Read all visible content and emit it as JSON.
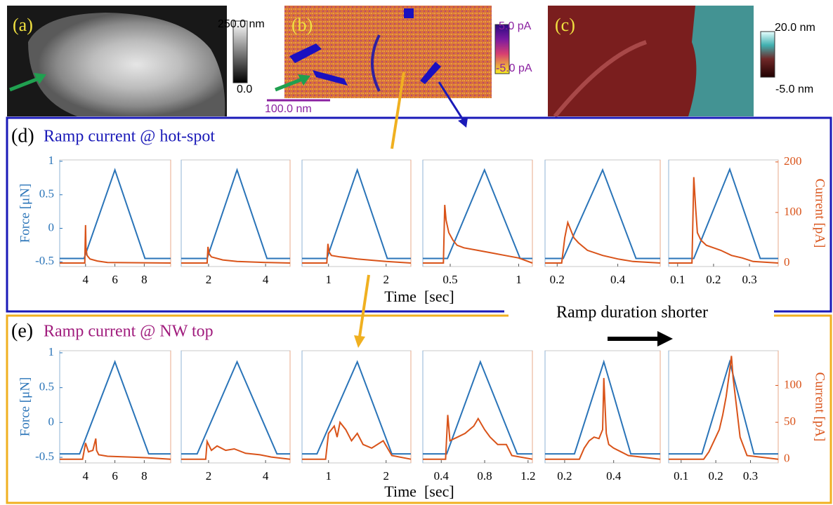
{
  "panels": [
    {
      "label": "(a)",
      "colorbar_max": "250.0 nm",
      "colorbar_min": "0.0"
    },
    {
      "label": "(b)",
      "colorbar_max": "5.0 pA",
      "colorbar_min": "-5.0 pA",
      "scale_bar": "100.0 nm"
    },
    {
      "label": "(c)",
      "colorbar_max": "20.0 nm",
      "colorbar_min": "-5.0 nm"
    }
  ],
  "rows": [
    {
      "label": "(d)",
      "title": "Ramp current @ hot-spot",
      "xlabel": "Time  [sec]"
    },
    {
      "label": "(e)",
      "title": "Ramp current @ NW top",
      "xlabel": "Time  [sec]"
    }
  ],
  "annotation": "Ramp duration shorter",
  "chart_data": [
    {
      "type": "line",
      "xlim": [
        2.24,
        9.8
      ],
      "xticks": [
        4,
        6,
        8
      ],
      "ylim": [
        -0.57,
        1.02
      ],
      "y2lim": [
        -7,
        204
      ],
      "yticks": [
        -0.5,
        0,
        0.5,
        1
      ],
      "ylabel": "Force [μN]",
      "series": [
        {
          "color": "#2a74b8",
          "x": [
            2.24,
            3.9,
            6,
            8.05,
            9.8
          ],
          "values": [
            -0.45,
            -0.45,
            0.87,
            -0.45,
            -0.45
          ]
        },
        {
          "color": "#d95319",
          "axis": "y2",
          "x": [
            2.24,
            3.95,
            4.0,
            4.03,
            4.1,
            4.3,
            4.8,
            5.5,
            9.8
          ],
          "values": [
            0,
            0,
            75,
            30,
            15,
            8,
            4,
            1,
            0
          ]
        }
      ]
    },
    {
      "type": "line",
      "xlim": [
        1.04,
        4.86
      ],
      "xticks": [
        2,
        4
      ],
      "ylim": [
        -0.57,
        1.02
      ],
      "y2lim": [
        -7,
        204
      ],
      "series": [
        {
          "color": "#2a74b8",
          "x": [
            1.04,
            1.95,
            3,
            4.05,
            4.86
          ],
          "values": [
            -0.45,
            -0.45,
            0.87,
            -0.45,
            -0.45
          ]
        },
        {
          "color": "#d95319",
          "axis": "y2",
          "x": [
            1.04,
            1.95,
            1.98,
            2.02,
            2.1,
            2.5,
            3,
            4,
            4.86
          ],
          "values": [
            0,
            0,
            32,
            18,
            12,
            6,
            3,
            1,
            0
          ]
        }
      ]
    },
    {
      "type": "line",
      "xlim": [
        0.54,
        2.43
      ],
      "xticks": [
        1,
        2
      ],
      "ylim": [
        -0.57,
        1.02
      ],
      "y2lim": [
        -7,
        204
      ],
      "series": [
        {
          "color": "#2a74b8",
          "x": [
            0.54,
            0.97,
            1.5,
            2.02,
            2.43
          ],
          "values": [
            -0.45,
            -0.45,
            0.87,
            -0.45,
            -0.45
          ]
        },
        {
          "color": "#d95319",
          "axis": "y2",
          "x": [
            0.54,
            0.97,
            0.99,
            1.01,
            1.05,
            1.2,
            1.5,
            1.8,
            2.0,
            2.43
          ],
          "values": [
            0,
            0,
            38,
            22,
            15,
            12,
            8,
            5,
            3,
            0
          ]
        }
      ]
    },
    {
      "type": "line",
      "xlim": [
        0.3,
        1.1
      ],
      "xticks": [
        0.5,
        1
      ],
      "ylim": [
        -0.57,
        1.02
      ],
      "y2lim": [
        -7,
        204
      ],
      "series": [
        {
          "color": "#2a74b8",
          "x": [
            0.3,
            0.48,
            0.75,
            1.01,
            1.1
          ],
          "values": [
            -0.45,
            -0.45,
            0.87,
            -0.45,
            -0.45
          ]
        },
        {
          "color": "#d95319",
          "axis": "y2",
          "x": [
            0.3,
            0.45,
            0.46,
            0.47,
            0.49,
            0.52,
            0.55,
            0.6,
            0.7,
            0.8,
            0.9,
            1.0,
            1.1
          ],
          "values": [
            0,
            0,
            115,
            85,
            60,
            45,
            35,
            30,
            25,
            20,
            15,
            10,
            0
          ]
        }
      ]
    },
    {
      "type": "line",
      "xlim": [
        0.16,
        0.54
      ],
      "xticks": [
        0.2,
        0.4
      ],
      "ylim": [
        -0.57,
        1.02
      ],
      "y2lim": [
        -7,
        204
      ],
      "series": [
        {
          "color": "#2a74b8",
          "x": [
            0.16,
            0.22,
            0.35,
            0.46,
            0.54
          ],
          "values": [
            -0.45,
            -0.45,
            0.87,
            -0.45,
            -0.45
          ]
        },
        {
          "color": "#d95319",
          "axis": "y2",
          "x": [
            0.16,
            0.215,
            0.225,
            0.235,
            0.245,
            0.255,
            0.27,
            0.3,
            0.35,
            0.4,
            0.45,
            0.54
          ],
          "values": [
            0,
            0,
            50,
            80,
            65,
            50,
            40,
            25,
            15,
            8,
            3,
            0
          ]
        }
      ]
    },
    {
      "type": "line",
      "xlim": [
        0.075,
        0.38
      ],
      "xticks": [
        0.1,
        0.2,
        0.3
      ],
      "ylim": [
        -0.57,
        1.02
      ],
      "y2lim": [
        -7,
        204
      ],
      "y2ticks": [
        0,
        100,
        200
      ],
      "y2label": "Current [pA]",
      "series": [
        {
          "color": "#2a74b8",
          "x": [
            0.075,
            0.145,
            0.245,
            0.33,
            0.38
          ],
          "values": [
            -0.45,
            -0.45,
            0.88,
            -0.45,
            -0.45
          ]
        },
        {
          "color": "#d95319",
          "axis": "y2",
          "x": [
            0.075,
            0.14,
            0.145,
            0.15,
            0.155,
            0.165,
            0.18,
            0.2,
            0.22,
            0.25,
            0.28,
            0.31,
            0.38
          ],
          "values": [
            0,
            0,
            170,
            110,
            60,
            45,
            35,
            30,
            25,
            15,
            10,
            3,
            0
          ]
        }
      ]
    },
    {
      "type": "line",
      "xlim": [
        2.24,
        9.8
      ],
      "xticks": [
        4,
        6,
        8
      ],
      "ylim": [
        -0.58,
        1.03
      ],
      "y2lim": [
        -5,
        147
      ],
      "yticks": [
        -0.5,
        0,
        0.5,
        1
      ],
      "ylabel": "Force [μN]",
      "series": [
        {
          "color": "#2a74b8",
          "x": [
            2.24,
            3.6,
            6,
            8.3,
            9.8
          ],
          "values": [
            -0.45,
            -0.45,
            0.87,
            -0.45,
            -0.45
          ]
        },
        {
          "color": "#d95319",
          "axis": "y2",
          "x": [
            2.24,
            3.8,
            4.0,
            4.2,
            4.5,
            4.7,
            4.75,
            4.9,
            5.5,
            7,
            8.2,
            9.8
          ],
          "values": [
            0,
            0,
            22,
            10,
            12,
            28,
            12,
            6,
            4,
            3,
            2,
            0
          ]
        }
      ]
    },
    {
      "type": "line",
      "xlim": [
        1.04,
        4.86
      ],
      "xticks": [
        2,
        4
      ],
      "ylim": [
        -0.58,
        1.03
      ],
      "y2lim": [
        -5,
        147
      ],
      "series": [
        {
          "color": "#2a74b8",
          "x": [
            1.04,
            1.6,
            3,
            4.4,
            4.86
          ],
          "values": [
            -0.45,
            -0.45,
            0.87,
            -0.45,
            -0.45
          ]
        },
        {
          "color": "#d95319",
          "axis": "y2",
          "x": [
            1.04,
            1.9,
            1.95,
            2.1,
            2.3,
            2.6,
            2.9,
            3.3,
            3.8,
            4.2,
            4.86
          ],
          "values": [
            0,
            0,
            24,
            12,
            18,
            12,
            14,
            8,
            6,
            3,
            0
          ]
        }
      ]
    },
    {
      "type": "line",
      "xlim": [
        0.54,
        2.43
      ],
      "xticks": [
        1,
        2
      ],
      "ylim": [
        -0.58,
        1.03
      ],
      "y2lim": [
        -5,
        147
      ],
      "series": [
        {
          "color": "#2a74b8",
          "x": [
            0.54,
            0.8,
            1.5,
            2.1,
            2.43
          ],
          "values": [
            -0.45,
            -0.45,
            0.87,
            -0.45,
            -0.45
          ]
        },
        {
          "color": "#d95319",
          "axis": "y2",
          "x": [
            0.54,
            0.95,
            1.0,
            1.1,
            1.15,
            1.2,
            1.3,
            1.4,
            1.5,
            1.6,
            1.75,
            1.95,
            2.1,
            2.43
          ],
          "values": [
            0,
            0,
            35,
            45,
            30,
            50,
            40,
            25,
            35,
            20,
            15,
            25,
            5,
            0
          ]
        }
      ]
    },
    {
      "type": "line",
      "xlim": [
        0.23,
        1.24
      ],
      "xticks": [
        0.4,
        0.8,
        1.2
      ],
      "ylim": [
        -0.58,
        1.03
      ],
      "y2lim": [
        -5,
        147
      ],
      "series": [
        {
          "color": "#2a74b8",
          "x": [
            0.23,
            0.45,
            0.76,
            1.1,
            1.24
          ],
          "values": [
            -0.45,
            -0.45,
            0.87,
            -0.45,
            -0.45
          ]
        },
        {
          "color": "#d95319",
          "axis": "y2",
          "x": [
            0.23,
            0.44,
            0.46,
            0.48,
            0.55,
            0.62,
            0.7,
            0.74,
            0.8,
            0.85,
            0.92,
            1.0,
            1.05,
            1.24
          ],
          "values": [
            0,
            0,
            60,
            25,
            30,
            35,
            45,
            55,
            40,
            30,
            20,
            20,
            5,
            0
          ]
        }
      ]
    },
    {
      "type": "line",
      "xlim": [
        0.12,
        0.59
      ],
      "xticks": [
        0.2,
        0.4
      ],
      "ylim": [
        -0.58,
        1.03
      ],
      "y2lim": [
        -5,
        147
      ],
      "series": [
        {
          "color": "#2a74b8",
          "x": [
            0.12,
            0.24,
            0.36,
            0.47,
            0.59
          ],
          "values": [
            -0.45,
            -0.45,
            0.87,
            -0.45,
            -0.45
          ]
        },
        {
          "color": "#d95319",
          "axis": "y2",
          "x": [
            0.12,
            0.26,
            0.28,
            0.3,
            0.32,
            0.34,
            0.355,
            0.36,
            0.37,
            0.38,
            0.4,
            0.43,
            0.46,
            0.59
          ],
          "values": [
            0,
            0,
            15,
            25,
            30,
            28,
            40,
            110,
            35,
            20,
            15,
            10,
            5,
            0
          ]
        }
      ]
    },
    {
      "type": "line",
      "xlim": [
        0.064,
        0.38
      ],
      "xticks": [
        0.1,
        0.2,
        0.3
      ],
      "ylim": [
        -0.58,
        1.03
      ],
      "y2lim": [
        -5,
        147
      ],
      "y2ticks": [
        0,
        50,
        100
      ],
      "y2label": "Current [pA]",
      "series": [
        {
          "color": "#2a74b8",
          "x": [
            0.064,
            0.16,
            0.24,
            0.31,
            0.38
          ],
          "values": [
            -0.45,
            -0.45,
            0.87,
            -0.45,
            -0.45
          ]
        },
        {
          "color": "#d95319",
          "axis": "y2",
          "x": [
            0.064,
            0.165,
            0.18,
            0.195,
            0.21,
            0.22,
            0.23,
            0.24,
            0.245,
            0.25,
            0.26,
            0.27,
            0.29,
            0.38
          ],
          "values": [
            0,
            0,
            10,
            25,
            40,
            60,
            85,
            120,
            140,
            110,
            70,
            30,
            5,
            0
          ]
        }
      ]
    }
  ]
}
